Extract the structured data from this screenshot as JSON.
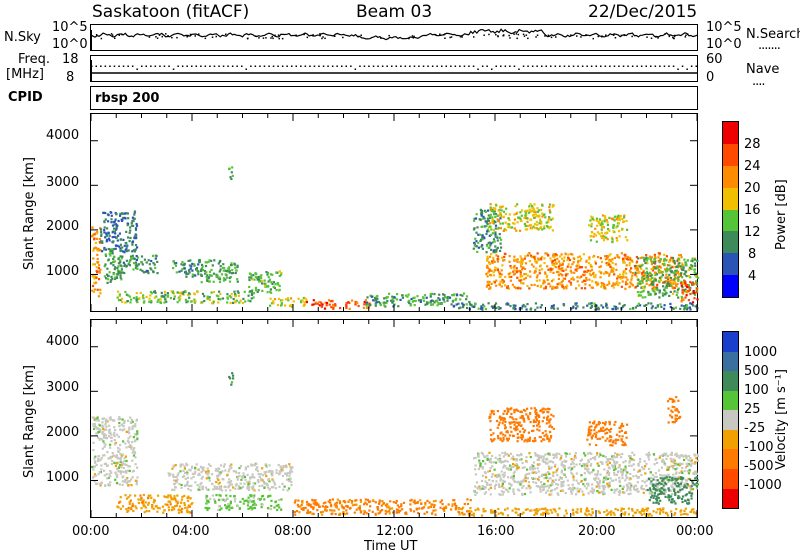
{
  "header": {
    "radar": "Saskatoon (fitACF)",
    "beam": "Beam 03",
    "date": "22/Dec/2015"
  },
  "top_panel": {
    "left_label": "N.Sky",
    "left_ticks": [
      "10^5",
      "10^0"
    ],
    "right_ticks": [
      "10^5",
      "10^0"
    ],
    "right_label": "N.Search",
    "right_legend_mark": "......."
  },
  "freq_panel": {
    "left_label_line1": "Freq.",
    "left_label_line2": "[MHz]",
    "left_ticks": [
      "18",
      "8"
    ],
    "right_ticks": [
      "60",
      "0"
    ],
    "right_label": "Nave",
    "right_legend_mark": "....",
    "cpid_label": "CPID",
    "cpid_value": "rbsp 200"
  },
  "power_panel": {
    "ylabel": "Slant Range [km]",
    "yticks": [
      "4000",
      "3000",
      "2000",
      "1000"
    ],
    "colorbar_label": "Power [dB]",
    "colorbar_ticks": [
      "28",
      "24",
      "20",
      "16",
      "12",
      "8",
      "4"
    ],
    "colors": [
      "#0000ff",
      "#2a55b5",
      "#3f8a5a",
      "#55c436",
      "#f0c000",
      "#ff8c00",
      "#ff4a00",
      "#ee0000"
    ]
  },
  "velocity_panel": {
    "ylabel": "Slant Range [km]",
    "yticks": [
      "4000",
      "3000",
      "2000",
      "1000"
    ],
    "colorbar_label": "Velocity [m s⁻¹]",
    "colorbar_ticks": [
      "1000",
      "500",
      "100",
      "25",
      "-25",
      "-100",
      "-500",
      "-1000"
    ],
    "colors": [
      "#1a3fcc",
      "#3a6fa0",
      "#3f8a5a",
      "#55c436",
      "#c8c8c0",
      "#f0a000",
      "#ff7a00",
      "#ff4a00",
      "#ee0000"
    ]
  },
  "x_axis": {
    "ticks": [
      "00:00",
      "04:00",
      "08:00",
      "12:00",
      "16:00",
      "20:00",
      "00:00"
    ],
    "label": "Time UT"
  },
  "chart_data": [
    {
      "type": "heatmap",
      "title": "Power",
      "x_range_hours": [
        0,
        24
      ],
      "y_range_km": [
        180,
        4600
      ],
      "colorbar_range_db": [
        0,
        32
      ],
      "regions": [
        {
          "t0": 0.0,
          "t1": 0.35,
          "r0": 500,
          "r1": 2100,
          "value": 22
        },
        {
          "t0": 0.35,
          "t1": 1.8,
          "r0": 1500,
          "r1": 2450,
          "value": 8
        },
        {
          "t0": 0.5,
          "t1": 1.2,
          "r0": 800,
          "r1": 1600,
          "value": 12
        },
        {
          "t0": 1.0,
          "t1": 2.6,
          "r0": 1050,
          "r1": 1450,
          "value": 10
        },
        {
          "t0": 1.0,
          "t1": 6.5,
          "r0": 380,
          "r1": 650,
          "value": 14
        },
        {
          "t0": 3.2,
          "t1": 4.4,
          "r0": 950,
          "r1": 1350,
          "value": 10
        },
        {
          "t0": 4.2,
          "t1": 5.8,
          "r0": 850,
          "r1": 1350,
          "value": 12
        },
        {
          "t0": 5.4,
          "t1": 5.6,
          "r0": 3150,
          "r1": 3450,
          "value": 12
        },
        {
          "t0": 6.2,
          "t1": 7.5,
          "r0": 600,
          "r1": 1100,
          "value": 13
        },
        {
          "t0": 7.0,
          "t1": 8.5,
          "r0": 300,
          "r1": 500,
          "value": 17
        },
        {
          "t0": 8.5,
          "t1": 11.0,
          "r0": 250,
          "r1": 450,
          "value": 26
        },
        {
          "t0": 10.8,
          "t1": 15.0,
          "r0": 300,
          "r1": 600,
          "value": 11
        },
        {
          "t0": 15.1,
          "t1": 16.2,
          "r0": 1500,
          "r1": 2500,
          "value": 10
        },
        {
          "t0": 15.7,
          "t1": 18.3,
          "r0": 2000,
          "r1": 2600,
          "value": 17
        },
        {
          "t0": 19.6,
          "t1": 21.2,
          "r0": 1750,
          "r1": 2350,
          "value": 17
        },
        {
          "t0": 15.6,
          "t1": 23.4,
          "r0": 700,
          "r1": 1500,
          "value": 22
        },
        {
          "t0": 21.5,
          "t1": 24.0,
          "r0": 500,
          "r1": 1400,
          "value": 13
        },
        {
          "t0": 23.3,
          "t1": 24.0,
          "r0": 400,
          "r1": 900,
          "value": 26
        },
        {
          "t0": 14.5,
          "t1": 24.0,
          "r0": 230,
          "r1": 380,
          "value": 9
        }
      ]
    },
    {
      "type": "heatmap",
      "title": "Velocity",
      "x_range_hours": [
        0,
        24
      ],
      "y_range_km": [
        180,
        4600
      ],
      "colorbar_range_ms": [
        -1000,
        1000
      ],
      "regions": [
        {
          "t0": 0.0,
          "t1": 1.8,
          "r0": 900,
          "r1": 2450,
          "value": 0
        },
        {
          "t0": 1.0,
          "t1": 4.0,
          "r0": 300,
          "r1": 700,
          "value": -80
        },
        {
          "t0": 3.0,
          "t1": 8.0,
          "r0": 800,
          "r1": 1400,
          "value": 0
        },
        {
          "t0": 5.4,
          "t1": 5.6,
          "r0": 3150,
          "r1": 3450,
          "value": 120
        },
        {
          "t0": 4.5,
          "t1": 7.5,
          "r0": 350,
          "r1": 700,
          "value": 40
        },
        {
          "t0": 8.0,
          "t1": 15.0,
          "r0": 250,
          "r1": 600,
          "value": -120
        },
        {
          "t0": 15.7,
          "t1": 18.3,
          "r0": 1900,
          "r1": 2650,
          "value": -300
        },
        {
          "t0": 19.6,
          "t1": 21.2,
          "r0": 1800,
          "r1": 2350,
          "value": -300
        },
        {
          "t0": 15.1,
          "t1": 24.0,
          "r0": 700,
          "r1": 1650,
          "value": 0
        },
        {
          "t0": 22.0,
          "t1": 24.0,
          "r0": 500,
          "r1": 1100,
          "value": 150
        },
        {
          "t0": 22.8,
          "t1": 23.3,
          "r0": 2300,
          "r1": 2900,
          "value": -300
        },
        {
          "t0": 14.5,
          "t1": 24.0,
          "r0": 230,
          "r1": 400,
          "value": -60
        }
      ]
    }
  ]
}
